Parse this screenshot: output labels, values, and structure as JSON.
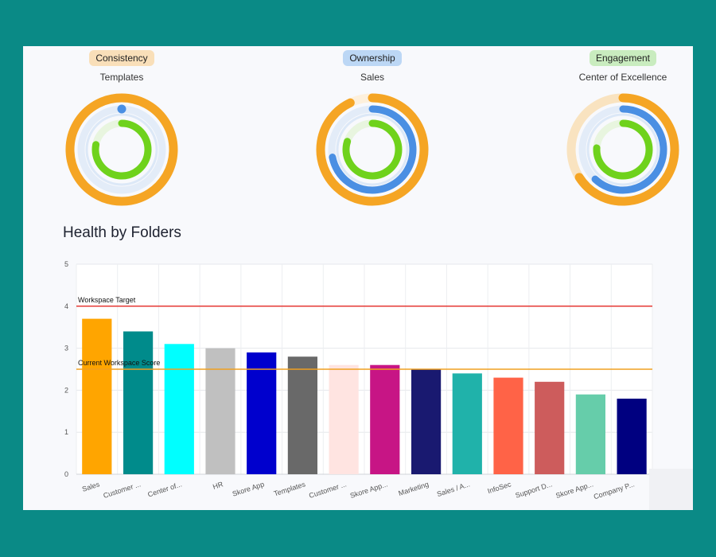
{
  "rings": [
    {
      "badge": "Consistency",
      "badge_color": "#f9dfb9",
      "subtitle": "Templates",
      "outer": 1.0,
      "middle": 0.02,
      "inner": 0.78,
      "faded_outer": false
    },
    {
      "badge": "Ownership",
      "badge_color": "#bcd7f5",
      "subtitle": "Sales",
      "outer": 0.93,
      "middle": 0.72,
      "inner": 0.8,
      "faded_outer": false
    },
    {
      "badge": "Engagement",
      "badge_color": "#c9ecbf",
      "subtitle": "Center of Excellence",
      "outer": 0.66,
      "middle": 0.62,
      "inner": 0.76,
      "faded_outer": true
    }
  ],
  "ring_colors": {
    "outer": "#f5a524",
    "middle": "#4a8fe3",
    "inner": "#6fd21c"
  },
  "section_title": "Health by Folders",
  "chart_data": {
    "type": "bar",
    "title": "Health by Folders",
    "xlabel": "",
    "ylabel": "",
    "ylim": [
      0,
      5
    ],
    "yticks": [
      "0",
      "1",
      "2",
      "3",
      "4",
      "5"
    ],
    "categories": [
      "Sales",
      "Customer ...",
      "Center of...",
      "HR",
      "Skore App",
      "Templates",
      "Customer ...",
      "Skore App...",
      "Marketing",
      "Sales / A...",
      "InfoSec",
      "Support D...",
      "Skore App...",
      "Company P..."
    ],
    "values": [
      3.7,
      3.4,
      3.1,
      3.0,
      2.9,
      2.8,
      2.6,
      2.6,
      2.5,
      2.4,
      2.3,
      2.2,
      1.9,
      1.8
    ],
    "colors": [
      "#ffa500",
      "#008b8b",
      "#00ffff",
      "#c0c0c0",
      "#0000cd",
      "#696969",
      "#ffe4e1",
      "#c71585",
      "#191970",
      "#20b2aa",
      "#ff6347",
      "#cd5c5c",
      "#66cdaa",
      "#000080"
    ],
    "reference_lines": [
      {
        "label": "Workspace Target",
        "value": 4,
        "color": "#e53935"
      },
      {
        "label": "Current Workspace Score",
        "value": 2.5,
        "color": "#f0a020"
      }
    ],
    "grid": true
  }
}
